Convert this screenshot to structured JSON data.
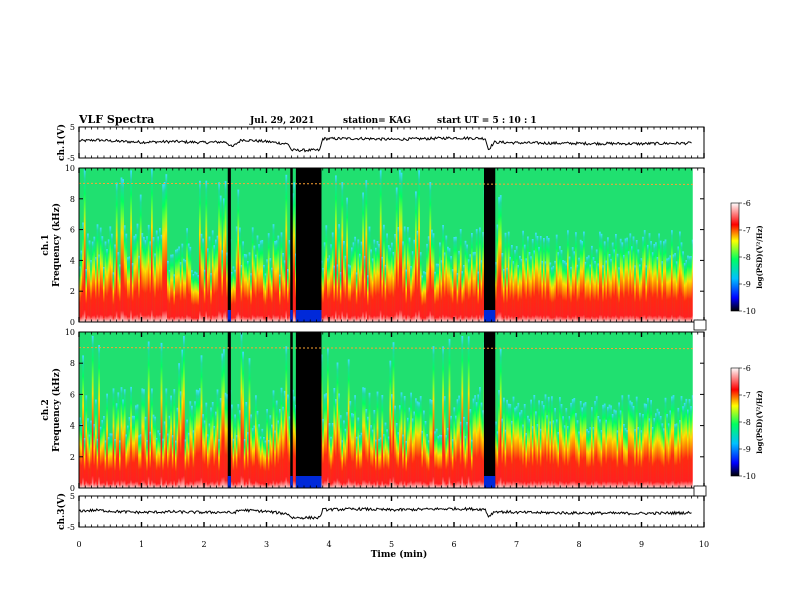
{
  "header": {
    "title": "VLF Spectra",
    "date": "Jul. 29, 2021",
    "station": "station= KAG",
    "start_ut": "start UT =  5 : 10 : 1"
  },
  "chart_data": [
    {
      "type": "line",
      "panel": "ch1-voltage",
      "ylabel": "ch.1(V)",
      "ylim": [
        -5,
        5
      ],
      "yticks": [
        -5,
        5
      ],
      "x": [
        0,
        0.3,
        0.6,
        1.0,
        1.5,
        2.0,
        2.35,
        2.45,
        2.6,
        3.0,
        3.35,
        3.4,
        3.85,
        3.9,
        4.5,
        5.0,
        5.5,
        6.0,
        6.5,
        6.55,
        6.65,
        7.0,
        8.0,
        9.0,
        9.8
      ],
      "values": [
        0.5,
        0.8,
        0.4,
        0.1,
        0.3,
        0.0,
        0.2,
        -1.5,
        0.9,
        0.3,
        -0.5,
        -2.5,
        -2.5,
        1.2,
        1.3,
        1.0,
        1.2,
        1.5,
        1.3,
        -2.2,
        0.1,
        -0.1,
        -0.3,
        -0.4,
        -0.2
      ]
    },
    {
      "type": "heatmap",
      "panel": "ch1-spectrogram",
      "ylabel": "ch.1 Frequency (kHz)",
      "ylim": [
        0,
        10
      ],
      "yticks": [
        0,
        2,
        4,
        6,
        8,
        10
      ],
      "colorbar_label": "log(PSD)(V²/Hz)",
      "colorbar_ticks": [
        -6,
        -7,
        -8,
        -9,
        -10
      ],
      "dark_intervals_min": [
        [
          2.38,
          2.43
        ],
        [
          3.38,
          3.42
        ],
        [
          3.47,
          3.88
        ],
        [
          6.48,
          6.66
        ]
      ],
      "constant_line_khz": 9.0
    },
    {
      "type": "heatmap",
      "panel": "ch2-spectrogram",
      "ylabel": "ch.2 Frequency (kHz)",
      "ylim": [
        0,
        10
      ],
      "yticks": [
        0,
        2,
        4,
        6,
        8,
        10
      ],
      "colorbar_label": "log(PSD)(V²/Hz)",
      "colorbar_ticks": [
        -6,
        -7,
        -8,
        -9,
        -10
      ],
      "dark_intervals_min": [
        [
          2.38,
          2.43
        ],
        [
          3.38,
          3.42
        ],
        [
          3.47,
          3.88
        ],
        [
          6.48,
          6.66
        ]
      ],
      "constant_line_khz": 9.0
    },
    {
      "type": "line",
      "panel": "ch3-voltage",
      "ylabel": "ch.3(V)",
      "ylim": [
        -5,
        5
      ],
      "yticks": [
        -5,
        5
      ],
      "x": [
        0,
        0.3,
        0.6,
        1.0,
        1.5,
        2.0,
        2.35,
        2.45,
        2.6,
        3.0,
        3.35,
        3.4,
        3.85,
        3.9,
        4.5,
        5.0,
        5.5,
        6.0,
        6.5,
        6.55,
        6.65,
        7.0,
        8.0,
        9.0,
        9.8
      ],
      "values": [
        0.2,
        0.4,
        0.0,
        -0.3,
        -0.1,
        -0.3,
        -0.2,
        -0.5,
        0.5,
        0.0,
        -0.8,
        -2.0,
        -2.0,
        0.6,
        0.8,
        0.5,
        0.7,
        0.9,
        0.7,
        -1.6,
        0.0,
        -0.3,
        -0.5,
        -0.6,
        -0.4
      ]
    }
  ],
  "x_axis": {
    "label": "Time (min)",
    "xlim": [
      0,
      10
    ],
    "ticks": [
      0,
      1,
      2,
      3,
      4,
      5,
      6,
      7,
      8,
      9,
      10
    ]
  },
  "colors": {
    "scale": [
      "#000000",
      "#0000ff",
      "#00a0ff",
      "#00ff80",
      "#ffff00",
      "#ff0000",
      "#ffffff"
    ],
    "dark": "#000000",
    "line": "#000000"
  }
}
